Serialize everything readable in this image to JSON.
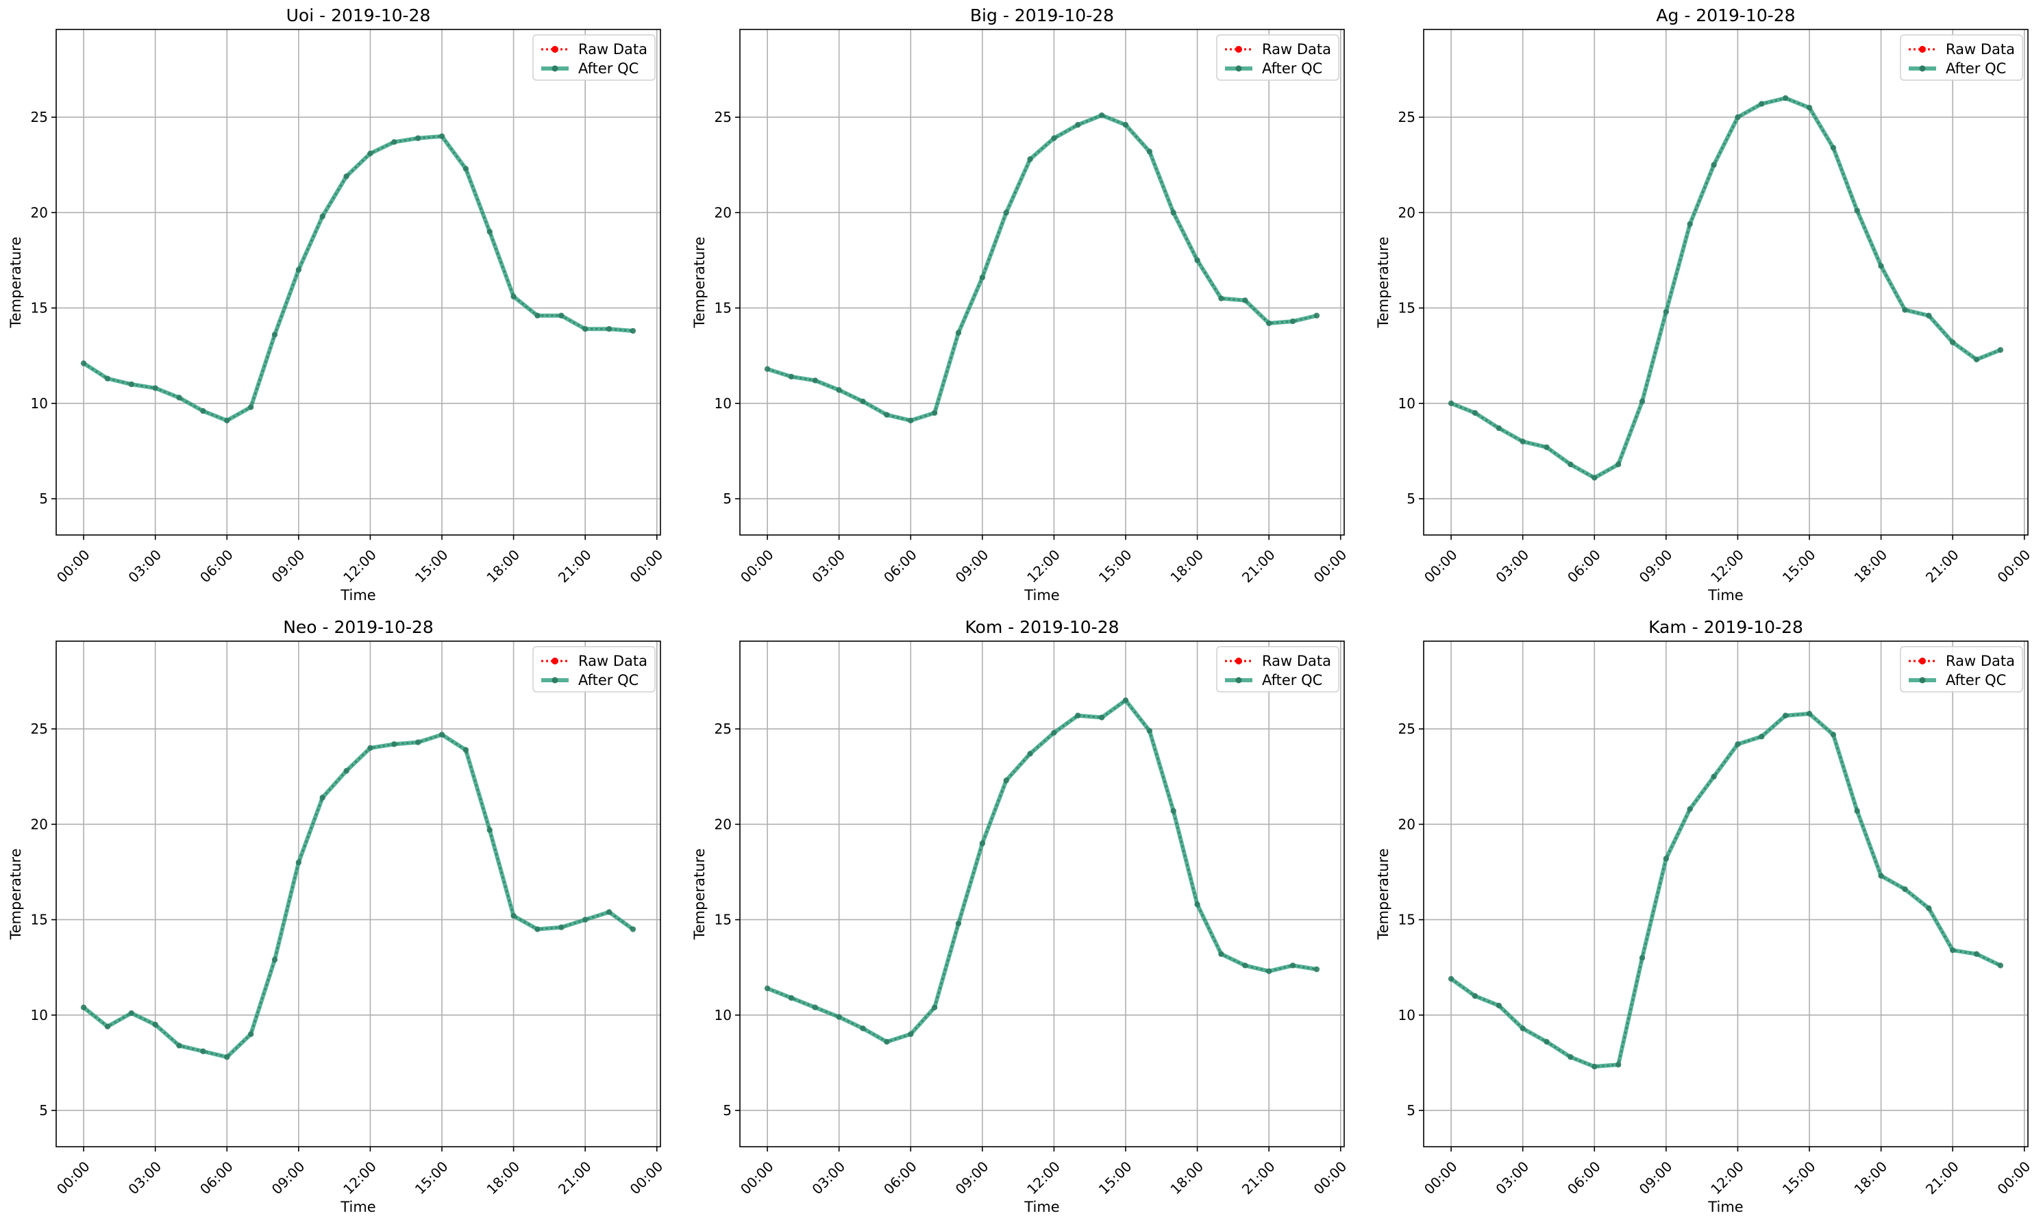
{
  "figure": {
    "legend_position": "top-right",
    "grid": true,
    "colors": {
      "raw": "#ff0000",
      "qc": "#2a9d7c",
      "qc_marker": "#2e7d63",
      "grid": "#b0b0b0"
    }
  },
  "chart_data": [
    {
      "type": "line",
      "title": "Uoi - 2019-10-28",
      "xlabel": "Time",
      "ylabel": "Temperature",
      "x": [
        "00:00",
        "01:00",
        "02:00",
        "03:00",
        "04:00",
        "05:00",
        "06:00",
        "07:00",
        "08:00",
        "09:00",
        "10:00",
        "11:00",
        "12:00",
        "13:00",
        "14:00",
        "15:00",
        "16:00",
        "17:00",
        "18:00",
        "19:00",
        "20:00",
        "21:00",
        "22:00",
        "23:00"
      ],
      "xticks": [
        "00:00",
        "03:00",
        "06:00",
        "09:00",
        "12:00",
        "15:00",
        "18:00",
        "21:00",
        "00:00"
      ],
      "yticks": [
        5,
        10,
        15,
        20,
        25
      ],
      "ylim": [
        3.1,
        29.6
      ],
      "series": [
        {
          "name": "Raw Data",
          "values": [
            12.1,
            11.3,
            11.0,
            10.8,
            10.3,
            9.6,
            9.1,
            9.8,
            13.6,
            17.0,
            19.8,
            21.9,
            23.1,
            23.7,
            23.9,
            24.0,
            22.3,
            19.0,
            15.6,
            14.6,
            14.6,
            13.9,
            13.9,
            13.8
          ]
        },
        {
          "name": "After QC",
          "values": [
            12.1,
            11.3,
            11.0,
            10.8,
            10.3,
            9.6,
            9.1,
            9.8,
            13.6,
            17.0,
            19.8,
            21.9,
            23.1,
            23.7,
            23.9,
            24.0,
            22.3,
            19.0,
            15.6,
            14.6,
            14.6,
            13.9,
            13.9,
            13.8
          ]
        }
      ]
    },
    {
      "type": "line",
      "title": "Big - 2019-10-28",
      "xlabel": "Time",
      "ylabel": "Temperature",
      "x": [
        "00:00",
        "01:00",
        "02:00",
        "03:00",
        "04:00",
        "05:00",
        "06:00",
        "07:00",
        "08:00",
        "09:00",
        "10:00",
        "11:00",
        "12:00",
        "13:00",
        "14:00",
        "15:00",
        "16:00",
        "17:00",
        "18:00",
        "19:00",
        "20:00",
        "21:00",
        "22:00",
        "23:00"
      ],
      "xticks": [
        "00:00",
        "03:00",
        "06:00",
        "09:00",
        "12:00",
        "15:00",
        "18:00",
        "21:00",
        "00:00"
      ],
      "yticks": [
        5,
        10,
        15,
        20,
        25
      ],
      "ylim": [
        3.1,
        29.6
      ],
      "series": [
        {
          "name": "Raw Data",
          "values": [
            11.8,
            11.4,
            11.2,
            10.7,
            10.1,
            9.4,
            9.1,
            9.5,
            13.7,
            16.6,
            20.0,
            22.8,
            23.9,
            24.6,
            25.1,
            24.6,
            23.2,
            20.0,
            17.5,
            15.5,
            15.4,
            14.2,
            14.3,
            14.6
          ]
        },
        {
          "name": "After QC",
          "values": [
            11.8,
            11.4,
            11.2,
            10.7,
            10.1,
            9.4,
            9.1,
            9.5,
            13.7,
            16.6,
            20.0,
            22.8,
            23.9,
            24.6,
            25.1,
            24.6,
            23.2,
            20.0,
            17.5,
            15.5,
            15.4,
            14.2,
            14.3,
            14.6
          ]
        }
      ]
    },
    {
      "type": "line",
      "title": "Ag - 2019-10-28",
      "xlabel": "Time",
      "ylabel": "Temperature",
      "x": [
        "00:00",
        "01:00",
        "02:00",
        "03:00",
        "04:00",
        "05:00",
        "06:00",
        "07:00",
        "08:00",
        "09:00",
        "10:00",
        "11:00",
        "12:00",
        "13:00",
        "14:00",
        "15:00",
        "16:00",
        "17:00",
        "18:00",
        "19:00",
        "20:00",
        "21:00",
        "22:00",
        "23:00"
      ],
      "xticks": [
        "00:00",
        "03:00",
        "06:00",
        "09:00",
        "12:00",
        "15:00",
        "18:00",
        "21:00",
        "00:00"
      ],
      "yticks": [
        5,
        10,
        15,
        20,
        25
      ],
      "ylim": [
        3.1,
        29.6
      ],
      "series": [
        {
          "name": "Raw Data",
          "values": [
            10.0,
            9.5,
            8.7,
            8.0,
            7.7,
            6.8,
            6.1,
            6.8,
            10.1,
            14.8,
            19.4,
            22.5,
            25.0,
            25.7,
            26.0,
            25.5,
            23.4,
            20.1,
            17.2,
            14.9,
            14.6,
            13.2,
            12.3,
            12.8
          ]
        },
        {
          "name": "After QC",
          "values": [
            10.0,
            9.5,
            8.7,
            8.0,
            7.7,
            6.8,
            6.1,
            6.8,
            10.1,
            14.8,
            19.4,
            22.5,
            25.0,
            25.7,
            26.0,
            25.5,
            23.4,
            20.1,
            17.2,
            14.9,
            14.6,
            13.2,
            12.3,
            12.8
          ]
        }
      ]
    },
    {
      "type": "line",
      "title": "Neo - 2019-10-28",
      "xlabel": "Time",
      "ylabel": "Temperature",
      "x": [
        "00:00",
        "01:00",
        "02:00",
        "03:00",
        "04:00",
        "05:00",
        "06:00",
        "07:00",
        "08:00",
        "09:00",
        "10:00",
        "11:00",
        "12:00",
        "13:00",
        "14:00",
        "15:00",
        "16:00",
        "17:00",
        "18:00",
        "19:00",
        "20:00",
        "21:00",
        "22:00",
        "23:00"
      ],
      "xticks": [
        "00:00",
        "03:00",
        "06:00",
        "09:00",
        "12:00",
        "15:00",
        "18:00",
        "21:00",
        "00:00"
      ],
      "yticks": [
        5,
        10,
        15,
        20,
        25
      ],
      "ylim": [
        3.1,
        29.6
      ],
      "series": [
        {
          "name": "Raw Data",
          "values": [
            10.4,
            9.4,
            10.1,
            9.5,
            8.4,
            8.1,
            7.8,
            9.0,
            12.9,
            18.0,
            21.4,
            22.8,
            24.0,
            24.2,
            24.3,
            24.7,
            23.9,
            19.7,
            15.2,
            14.5,
            14.6,
            15.0,
            15.4,
            14.5
          ]
        },
        {
          "name": "After QC",
          "values": [
            10.4,
            9.4,
            10.1,
            9.5,
            8.4,
            8.1,
            7.8,
            9.0,
            12.9,
            18.0,
            21.4,
            22.8,
            24.0,
            24.2,
            24.3,
            24.7,
            23.9,
            19.7,
            15.2,
            14.5,
            14.6,
            15.0,
            15.4,
            14.5
          ]
        }
      ]
    },
    {
      "type": "line",
      "title": "Kom - 2019-10-28",
      "xlabel": "Time",
      "ylabel": "Temperature",
      "x": [
        "00:00",
        "01:00",
        "02:00",
        "03:00",
        "04:00",
        "05:00",
        "06:00",
        "07:00",
        "08:00",
        "09:00",
        "10:00",
        "11:00",
        "12:00",
        "13:00",
        "14:00",
        "15:00",
        "16:00",
        "17:00",
        "18:00",
        "19:00",
        "20:00",
        "21:00",
        "22:00",
        "23:00"
      ],
      "xticks": [
        "00:00",
        "03:00",
        "06:00",
        "09:00",
        "12:00",
        "15:00",
        "18:00",
        "21:00",
        "00:00"
      ],
      "yticks": [
        5,
        10,
        15,
        20,
        25
      ],
      "ylim": [
        3.1,
        29.6
      ],
      "series": [
        {
          "name": "Raw Data",
          "values": [
            11.4,
            10.9,
            10.4,
            9.9,
            9.3,
            8.6,
            9.0,
            10.4,
            14.8,
            19.0,
            22.3,
            23.7,
            24.8,
            25.7,
            25.6,
            26.5,
            24.9,
            20.7,
            15.8,
            13.2,
            12.6,
            12.3,
            12.6,
            12.4
          ]
        },
        {
          "name": "After QC",
          "values": [
            11.4,
            10.9,
            10.4,
            9.9,
            9.3,
            8.6,
            9.0,
            10.4,
            14.8,
            19.0,
            22.3,
            23.7,
            24.8,
            25.7,
            25.6,
            26.5,
            24.9,
            20.7,
            15.8,
            13.2,
            12.6,
            12.3,
            12.6,
            12.4
          ]
        }
      ]
    },
    {
      "type": "line",
      "title": "Kam - 2019-10-28",
      "xlabel": "Time",
      "ylabel": "Temperature",
      "x": [
        "00:00",
        "01:00",
        "02:00",
        "03:00",
        "04:00",
        "05:00",
        "06:00",
        "07:00",
        "08:00",
        "09:00",
        "10:00",
        "11:00",
        "12:00",
        "13:00",
        "14:00",
        "15:00",
        "16:00",
        "17:00",
        "18:00",
        "19:00",
        "20:00",
        "21:00",
        "22:00",
        "23:00"
      ],
      "xticks": [
        "00:00",
        "03:00",
        "06:00",
        "09:00",
        "12:00",
        "15:00",
        "18:00",
        "21:00",
        "00:00"
      ],
      "yticks": [
        5,
        10,
        15,
        20,
        25
      ],
      "ylim": [
        3.1,
        29.6
      ],
      "series": [
        {
          "name": "Raw Data",
          "values": [
            11.9,
            11.0,
            10.5,
            9.3,
            8.6,
            7.8,
            7.3,
            7.4,
            13.0,
            18.2,
            20.8,
            22.5,
            24.2,
            24.6,
            25.7,
            25.8,
            24.7,
            20.7,
            17.3,
            16.6,
            15.6,
            13.4,
            13.2,
            12.6
          ]
        },
        {
          "name": "After QC",
          "values": [
            11.9,
            11.0,
            10.5,
            9.3,
            8.6,
            7.8,
            7.3,
            7.4,
            13.0,
            18.2,
            20.8,
            22.5,
            24.2,
            24.6,
            25.7,
            25.8,
            24.7,
            20.7,
            17.3,
            16.6,
            15.6,
            13.4,
            13.2,
            12.6
          ]
        }
      ]
    }
  ]
}
